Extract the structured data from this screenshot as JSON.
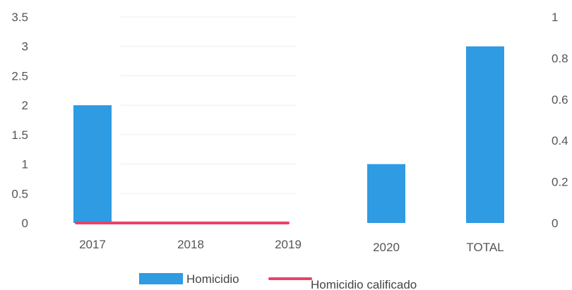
{
  "chart_data": {
    "type": "bar",
    "categories": [
      "2017",
      "2018",
      "2019",
      "2020",
      "TOTAL"
    ],
    "series": [
      {
        "name": "Homicidio",
        "type": "bar",
        "axis": "left",
        "color": "#2e9be3",
        "values": [
          2,
          0,
          0,
          1,
          3
        ]
      },
      {
        "name": "Homicidio calificado",
        "type": "line",
        "axis": "right",
        "color": "#e8436a",
        "values": [
          0,
          0,
          0,
          null,
          null
        ]
      }
    ],
    "y_left": {
      "min": 0,
      "max": 3.5,
      "ticks": [
        "0",
        "0.5",
        "1",
        "1.5",
        "2",
        "2.5",
        "3",
        "3.5"
      ]
    },
    "y_right": {
      "min": 0,
      "max": 1,
      "ticks": [
        "0",
        "0.2",
        "0.4",
        "0.6",
        "0.8",
        "1"
      ]
    },
    "grid": true,
    "legend": "bottom"
  }
}
